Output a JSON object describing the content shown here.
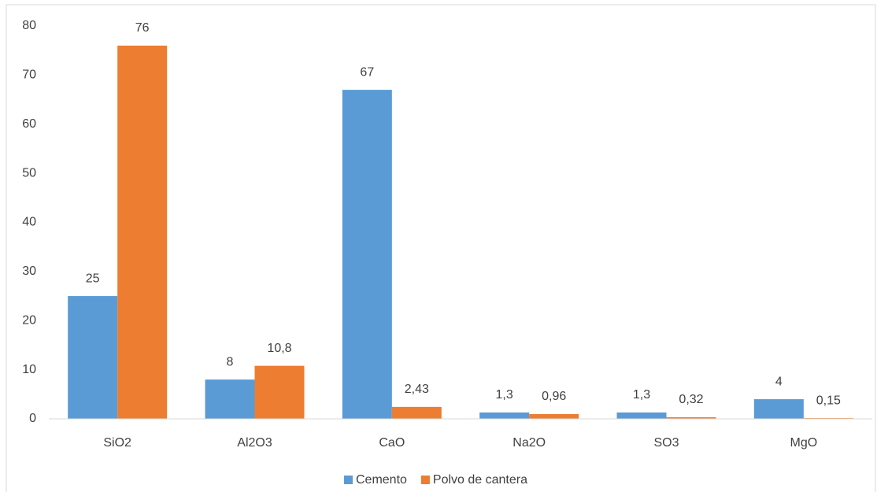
{
  "chart_data": {
    "type": "bar",
    "categories": [
      "SiO2",
      "Al2O3",
      "CaO",
      "Na2O",
      "SO3",
      "MgO"
    ],
    "series": [
      {
        "name": "Cemento",
        "color": "#5b9bd5",
        "values": [
          25,
          8,
          67,
          1.3,
          1.3,
          4
        ],
        "value_labels": [
          "25",
          "8",
          "67",
          "1,3",
          "1,3",
          "4"
        ]
      },
      {
        "name": "Polvo de cantera",
        "color": "#ed7d31",
        "values": [
          76,
          10.8,
          2.43,
          0.96,
          0.32,
          0.15
        ],
        "value_labels": [
          "76",
          "10,8",
          "2,43",
          "0,96",
          "0,32",
          "0,15"
        ]
      }
    ],
    "ylim": [
      0,
      80
    ],
    "yticks": [
      0,
      10,
      20,
      30,
      40,
      50,
      60,
      70,
      80
    ],
    "grid": false,
    "legend": "bottom"
  }
}
